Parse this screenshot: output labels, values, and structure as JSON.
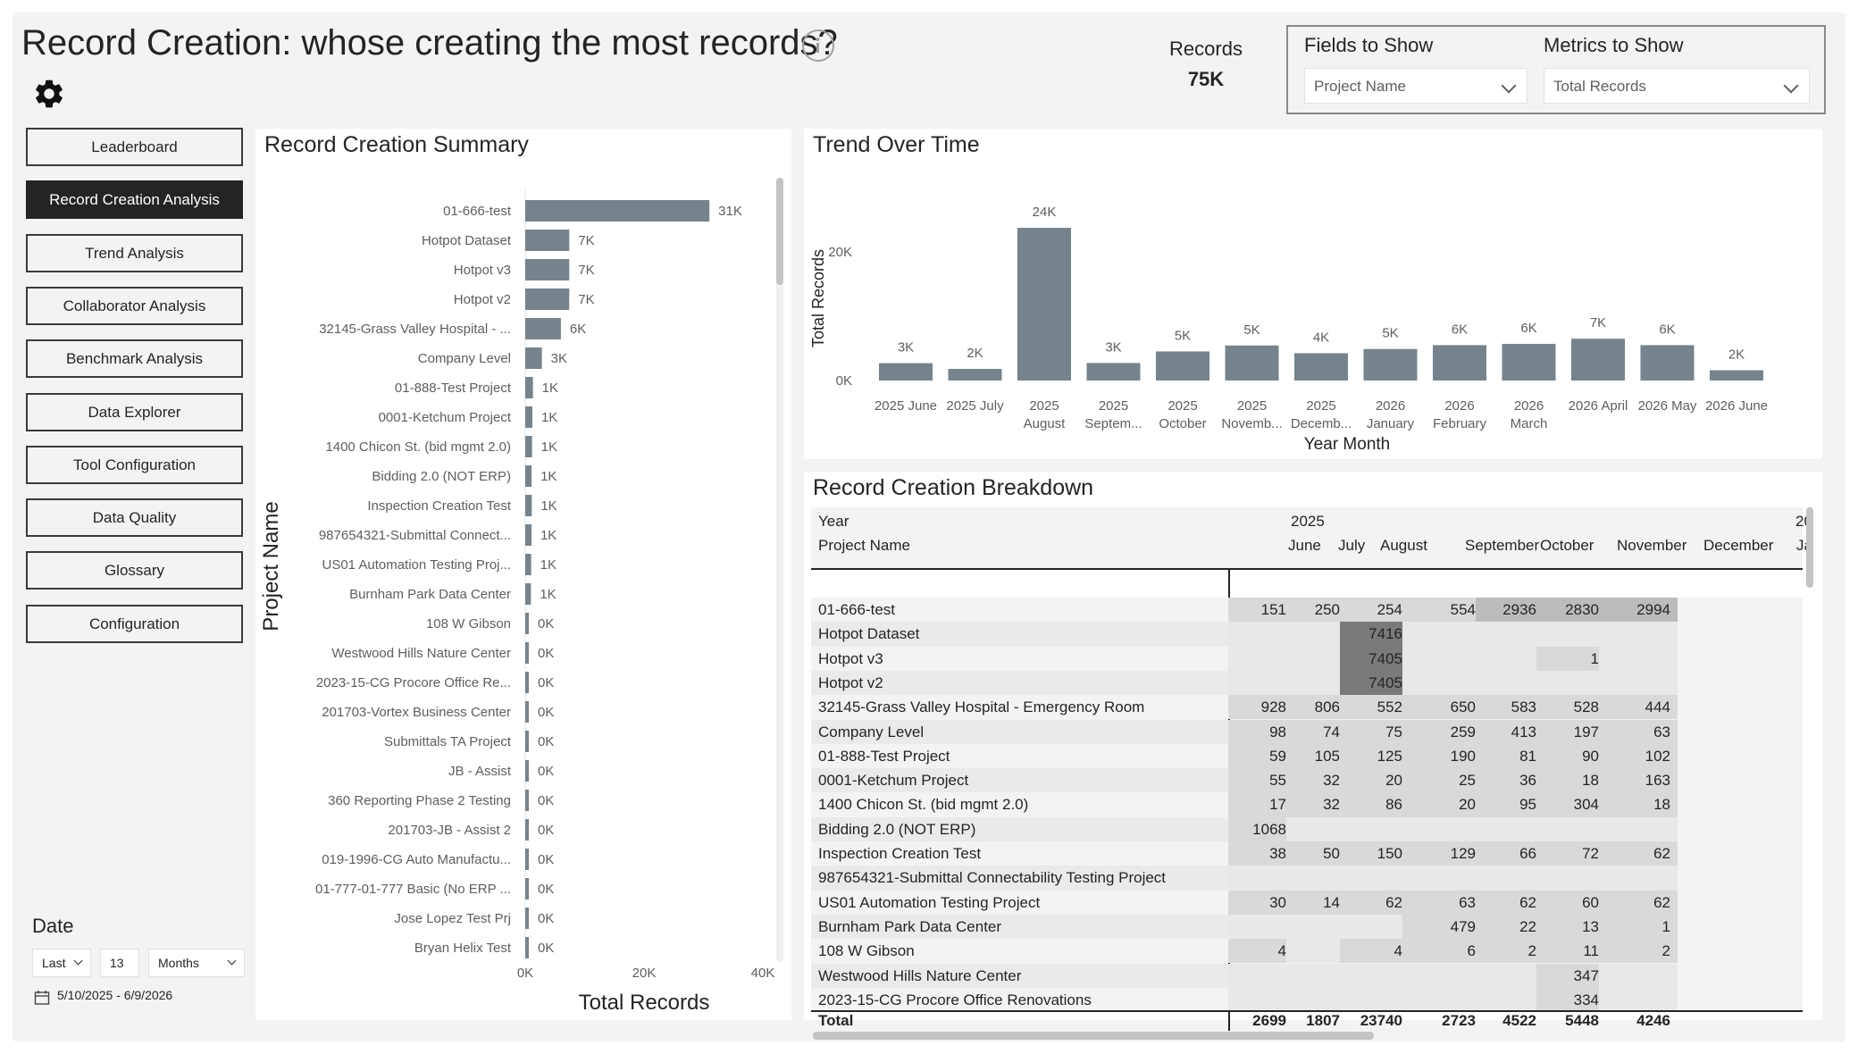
{
  "header": {
    "title": "Record Creation: whose creating the most records?",
    "kpi_label": "Records",
    "kpi_value": "75K"
  },
  "slicers": {
    "fields_title": "Fields to Show",
    "fields_value": "Project Name",
    "metrics_title": "Metrics to Show",
    "metrics_value": "Total Records"
  },
  "nav": {
    "items": [
      {
        "label": "Leaderboard",
        "active": false
      },
      {
        "label": "Record Creation Analysis",
        "active": true
      },
      {
        "label": "Trend Analysis",
        "active": false
      },
      {
        "label": "Collaborator Analysis",
        "active": false
      },
      {
        "label": "Benchmark Analysis",
        "active": false
      },
      {
        "label": "Data Explorer",
        "active": false
      },
      {
        "label": "Tool Configuration",
        "active": false
      },
      {
        "label": "Data Quality",
        "active": false
      },
      {
        "label": "Glossary",
        "active": false
      },
      {
        "label": "Configuration",
        "active": false
      }
    ]
  },
  "date_filter": {
    "label": "Date",
    "relative": "Last",
    "count": "13",
    "unit": "Months",
    "range": "5/10/2025 - 6/9/2026"
  },
  "colors": {
    "bar": "#76838c",
    "heat_light": "#f3f3f3",
    "heat_mid": "#d4d4d4",
    "heat_dark": "#7a7a7a"
  },
  "summary": {
    "title": "Record Creation Summary"
  },
  "trend": {
    "title": "Trend Over Time"
  },
  "breakdown": {
    "title": "Record Creation Breakdown",
    "year_header": "Year",
    "year_value": "2025",
    "year_next_partial": "20",
    "project_header": "Project Name",
    "months": [
      "June",
      "July",
      "August",
      "September",
      "October",
      "November",
      "December",
      "Ja"
    ],
    "rows": [
      {
        "name": "01-666-test",
        "values": [
          "151",
          "250",
          "254",
          "554",
          "2936",
          "2830",
          "2994"
        ]
      },
      {
        "name": "Hotpot Dataset",
        "values": [
          "",
          "",
          "7416",
          "",
          "",
          "",
          ""
        ]
      },
      {
        "name": "Hotpot v3",
        "values": [
          "",
          "",
          "7405",
          "",
          "",
          "1",
          ""
        ]
      },
      {
        "name": "Hotpot v2",
        "values": [
          "",
          "",
          "7405",
          "",
          "",
          "",
          ""
        ]
      },
      {
        "name": "32145-Grass Valley Hospital - Emergency Room",
        "values": [
          "928",
          "806",
          "552",
          "650",
          "583",
          "528",
          "444"
        ]
      },
      {
        "name": "Company Level",
        "values": [
          "98",
          "74",
          "75",
          "259",
          "413",
          "197",
          "63"
        ]
      },
      {
        "name": "01-888-Test Project",
        "values": [
          "59",
          "105",
          "125",
          "190",
          "81",
          "90",
          "102"
        ]
      },
      {
        "name": "0001-Ketchum Project",
        "values": [
          "55",
          "32",
          "20",
          "25",
          "36",
          "18",
          "163"
        ]
      },
      {
        "name": "1400 Chicon St. (bid mgmt 2.0)",
        "values": [
          "17",
          "32",
          "86",
          "20",
          "95",
          "304",
          "18"
        ]
      },
      {
        "name": "Bidding 2.0 (NOT ERP)",
        "values": [
          "1068",
          "",
          "",
          "",
          "",
          "",
          ""
        ]
      },
      {
        "name": "Inspection Creation Test",
        "values": [
          "38",
          "50",
          "150",
          "129",
          "66",
          "72",
          "62"
        ]
      },
      {
        "name": "987654321-Submittal Connectability Testing Project",
        "values": [
          "",
          "",
          "",
          "",
          "",
          "",
          ""
        ]
      },
      {
        "name": "US01 Automation Testing Project",
        "values": [
          "30",
          "14",
          "62",
          "63",
          "62",
          "60",
          "62"
        ]
      },
      {
        "name": "Burnham Park Data Center",
        "values": [
          "",
          "",
          "",
          "479",
          "22",
          "13",
          "1"
        ]
      },
      {
        "name": "108 W Gibson",
        "values": [
          "4",
          "",
          "4",
          "6",
          "2",
          "11",
          "2"
        ]
      },
      {
        "name": "Westwood Hills Nature Center",
        "values": [
          "",
          "",
          "",
          "",
          "",
          "347",
          ""
        ]
      },
      {
        "name": "2023-15-CG Procore Office Renovations",
        "values": [
          "",
          "",
          "",
          "",
          "",
          "334",
          ""
        ]
      }
    ],
    "total_label": "Total",
    "totals": [
      "2699",
      "1807",
      "23740",
      "2723",
      "4522",
      "5448",
      "4246"
    ]
  },
  "chart_data": [
    {
      "type": "bar",
      "orientation": "horizontal",
      "title": "Record Creation Summary",
      "xlabel": "Total Records",
      "ylabel": "Project Name",
      "xlim": [
        0,
        40000
      ],
      "xticks": [
        "0K",
        "20K",
        "40K"
      ],
      "categories": [
        "01-666-test",
        "Hotpot Dataset",
        "Hotpot v3",
        "Hotpot v2",
        "32145-Grass Valley Hospital - ...",
        "Company Level",
        "01-888-Test Project",
        "0001-Ketchum Project",
        "1400 Chicon St. (bid mgmt 2.0)",
        "Bidding 2.0 (NOT ERP)",
        "Inspection Creation Test",
        "987654321-Submittal Connect...",
        "US01 Automation Testing Proj...",
        "Burnham Park Data Center",
        "108 W Gibson",
        "Westwood Hills Nature Center",
        "2023-15-CG Procore Office Re...",
        "201703-Vortex Business Center",
        "Submittals TA Project",
        "JB - Assist",
        "360 Reporting Phase 2 Testing",
        "201703-JB - Assist 2",
        "019-1996-CG Auto Manufactu...",
        "01-777-01-777 Basic (No ERP ...",
        "Jose Lopez Test Prj",
        "Bryan Helix Test"
      ],
      "values": [
        31000,
        7416,
        7406,
        7405,
        6000,
        2800,
        1300,
        1200,
        1150,
        1068,
        1100,
        1050,
        1000,
        950,
        430,
        400,
        380,
        350,
        330,
        300,
        280,
        260,
        240,
        220,
        200,
        180
      ],
      "labels": [
        "31K",
        "7K",
        "7K",
        "7K",
        "6K",
        "3K",
        "1K",
        "1K",
        "1K",
        "1K",
        "1K",
        "1K",
        "1K",
        "1K",
        "0K",
        "0K",
        "0K",
        "0K",
        "0K",
        "0K",
        "0K",
        "0K",
        "0K",
        "0K",
        "0K",
        "0K"
      ]
    },
    {
      "type": "bar",
      "title": "Trend Over Time",
      "xlabel": "Year Month",
      "ylabel": "Total Records",
      "ylim": [
        0,
        25000
      ],
      "yticks": [
        "0K",
        "20K"
      ],
      "categories": [
        [
          "2025 June"
        ],
        [
          "2025 July"
        ],
        [
          "2025",
          "August"
        ],
        [
          "2025",
          "Septem..."
        ],
        [
          "2025",
          "October"
        ],
        [
          "2025",
          "Novemb..."
        ],
        [
          "2025",
          "Decemb..."
        ],
        [
          "2026",
          "January"
        ],
        [
          "2026",
          "February"
        ],
        [
          "2026",
          "March"
        ],
        [
          "2026 April"
        ],
        [
          "2026 May"
        ],
        [
          "2026 June"
        ]
      ],
      "values": [
        2699,
        1807,
        23740,
        2723,
        4522,
        5448,
        4246,
        4900,
        5500,
        5700,
        6500,
        5500,
        1600
      ],
      "labels": [
        "3K",
        "2K",
        "24K",
        "3K",
        "5K",
        "5K",
        "4K",
        "5K",
        "6K",
        "6K",
        "7K",
        "6K",
        "2K"
      ]
    }
  ]
}
